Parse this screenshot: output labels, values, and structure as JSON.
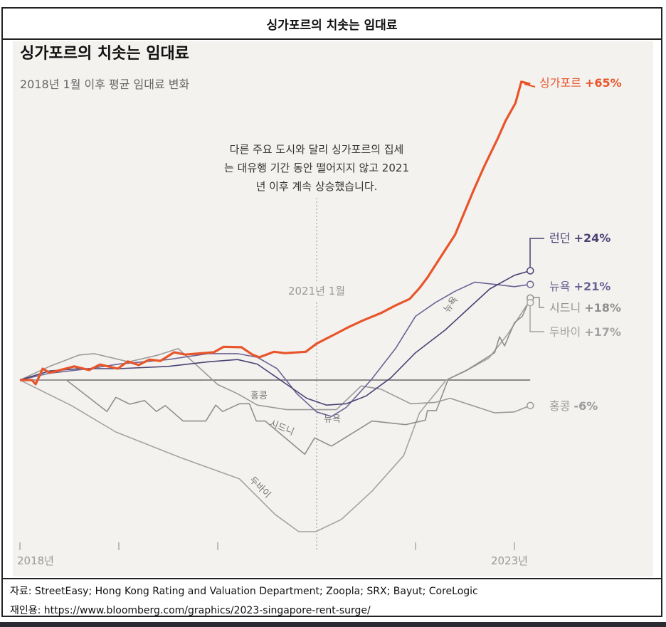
{
  "header": {
    "title": "싱가포르의 치솟는 임대료"
  },
  "source": {
    "line1": "자료: StreetEasy; Hong Kong Rating and Valuation Department; Zoopla; SRX; Bayut; CoreLogic",
    "line2": "재인용: https://www.bloomberg.com/graphics/2023-singapore-rent-surge/"
  },
  "chart_data": {
    "type": "line",
    "title": "싱가포르의 치솟는 임대료",
    "subtitle": "2018년 1월 이후 평균 임대료 변화",
    "annotation": {
      "text_lines": [
        "다른 주요 도시와 달리 싱가포르의 집세",
        "는 대유행 기간 동안 떨어지지 않고 2021",
        "년 이후 계속 상승했습니다."
      ],
      "marker_label": "2021년 1월",
      "marker_x": 2021.0
    },
    "xlabel": "",
    "ylabel": "",
    "xlim": [
      2018.0,
      2023.16
    ],
    "ylim": [
      -35,
      67
    ],
    "unit": "%",
    "x_ticks": [
      2018,
      2019,
      2020,
      2021,
      2022,
      2023
    ],
    "x_tick_labels": {
      "2018": "2018년",
      "2023": "2023년"
    },
    "baseline": 0,
    "grid": false,
    "series": [
      {
        "name": "싱가포르",
        "end_label": "+65%",
        "color": "#e8552a",
        "x": [
          2018.0,
          2018.12,
          2018.16,
          2018.23,
          2018.3,
          2018.55,
          2018.7,
          2018.81,
          2018.99,
          2019.09,
          2019.2,
          2019.31,
          2019.42,
          2019.56,
          2019.67,
          2019.96,
          2020.06,
          2020.24,
          2020.35,
          2020.42,
          2020.57,
          2020.68,
          2020.89,
          2021.0,
          2021.18,
          2021.32,
          2021.47,
          2021.65,
          2021.79,
          2021.94,
          2022.04,
          2022.12,
          2022.26,
          2022.4,
          2022.58,
          2022.69,
          2022.83,
          2022.91,
          2023.01,
          2023.07,
          2023.16
        ],
        "y": [
          0,
          0,
          -0.9,
          2.5,
          1.6,
          3.0,
          2.2,
          3.4,
          2.5,
          4.1,
          3.3,
          4.5,
          4.2,
          6.1,
          5.6,
          6.1,
          7.3,
          7.2,
          5.6,
          5.0,
          6.2,
          5.9,
          6.2,
          8.0,
          10.0,
          11.6,
          13.1,
          14.7,
          16.3,
          17.8,
          20.2,
          22.5,
          27.2,
          31.9,
          41.3,
          46.7,
          53.0,
          56.9,
          60.8,
          65.5,
          65
        ]
      },
      {
        "name": "런던",
        "end_label": "+24%",
        "color": "#4b4173",
        "x": [
          2018.0,
          2018.3,
          2018.6,
          2019.0,
          2019.5,
          2019.9,
          2020.2,
          2020.4,
          2020.7,
          2020.9,
          2021.1,
          2021.3,
          2021.5,
          2021.75,
          2022.0,
          2022.3,
          2022.5,
          2022.75,
          2023.0,
          2023.16
        ],
        "y": [
          0,
          2,
          2.5,
          2.5,
          3,
          4,
          4.5,
          3.5,
          -1,
          -4,
          -5.5,
          -5.2,
          -3.5,
          0.5,
          6,
          11,
          15,
          20,
          23,
          24
        ]
      },
      {
        "name": "뉴욕",
        "end_label": "+21%",
        "color": "#6e6294",
        "x": [
          2018.0,
          2018.3,
          2018.7,
          2019.0,
          2019.5,
          2019.9,
          2020.2,
          2020.4,
          2020.6,
          2020.8,
          2021.0,
          2021.15,
          2021.3,
          2021.55,
          2021.8,
          2022.0,
          2022.2,
          2022.4,
          2022.6,
          2022.8,
          2023.0,
          2023.16
        ],
        "y": [
          0,
          1.5,
          2.5,
          3.5,
          4.5,
          5.8,
          5.8,
          5.0,
          2.5,
          -3,
          -7,
          -8,
          -6,
          0,
          7,
          14,
          17,
          19.5,
          21.5,
          21,
          20.5,
          21
        ]
      },
      {
        "name": "시드니",
        "end_label": "+18%",
        "color": "#8f8f8f",
        "x": [
          2018.0,
          2018.47,
          2018.88,
          2018.97,
          2019.11,
          2019.26,
          2019.38,
          2019.47,
          2019.65,
          2019.88,
          2019.98,
          2020.05,
          2020.22,
          2020.32,
          2020.39,
          2020.48,
          2020.88,
          2020.98,
          2021.12,
          2021.15,
          2021.56,
          2021.9,
          2022.1,
          2022.12,
          2022.21,
          2022.33,
          2022.52,
          2022.8,
          2022.85,
          2022.9,
          2023.0,
          2023.08,
          2023.16
        ],
        "y": [
          0,
          0,
          -6.9,
          -3.8,
          -5.3,
          -4.5,
          -6.9,
          -5.6,
          -9,
          -9,
          -5.5,
          -6.9,
          -5.2,
          -5.2,
          -9,
          -9,
          -16.3,
          -12.7,
          -14.2,
          -14.5,
          -9,
          -9.8,
          -8.8,
          -6.7,
          -6.7,
          0.2,
          2.2,
          6,
          9.5,
          7.5,
          12.6,
          14,
          18
        ]
      },
      {
        "name": "두바이",
        "end_label": "+17%",
        "color": "#a3a3a3",
        "x": [
          2018.0,
          2018.52,
          2018.97,
          2019.62,
          2020.22,
          2020.58,
          2020.82,
          2020.99,
          2021.25,
          2021.56,
          2021.88,
          2022.04,
          2022.31,
          2022.5,
          2022.74,
          2022.93,
          2023.12,
          2023.16
        ],
        "y": [
          0,
          -5.6,
          -11.4,
          -17,
          -21.7,
          -29.5,
          -33.3,
          -33.3,
          -30.6,
          -24.4,
          -16.6,
          -7.2,
          0,
          1.9,
          4.8,
          10,
          16.3,
          17
        ]
      },
      {
        "name": "홍콩",
        "end_label": "-6%",
        "color": "#9a9a9a",
        "x": [
          2018.0,
          2018.3,
          2018.6,
          2018.75,
          2019.1,
          2019.4,
          2019.6,
          2019.8,
          2020.0,
          2020.2,
          2020.4,
          2020.7,
          2021.0,
          2021.2,
          2021.45,
          2021.65,
          2021.95,
          2022.2,
          2022.35,
          2022.8,
          2023.0,
          2023.16
        ],
        "y": [
          0,
          3,
          5.5,
          5.8,
          4,
          5.5,
          6.9,
          3,
          -1,
          -3,
          -5.5,
          -6.5,
          -6.5,
          -6.5,
          -1.3,
          -2,
          -5.2,
          -4.9,
          -4,
          -7.2,
          -7,
          -5.6
        ]
      }
    ],
    "inline_labels": [
      "홍콩",
      "시드니",
      "두바이",
      "뉴욕",
      "뉴욕"
    ]
  }
}
